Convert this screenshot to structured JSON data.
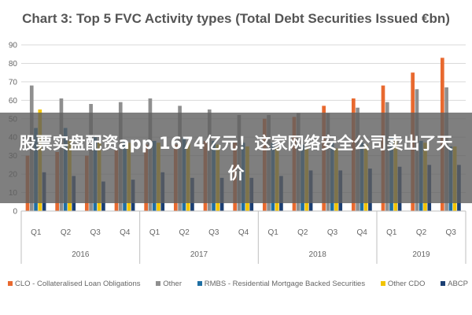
{
  "chart_data": {
    "type": "bar",
    "title": "Chart 3: Top 5 FVC Activity types (Total Debt Securities Issued €bn)",
    "ylim": [
      0,
      90
    ],
    "yticks": [
      "0",
      "10",
      "20",
      "30",
      "40",
      "50",
      "60",
      "70",
      "80",
      "90"
    ],
    "grid": true,
    "legend_position": "bottom",
    "categories": [
      "Q1",
      "Q2",
      "Q3",
      "Q4",
      "Q1",
      "Q2",
      "Q3",
      "Q4",
      "Q1",
      "Q2",
      "Q3",
      "Q4",
      "Q1",
      "Q2",
      "Q3"
    ],
    "years": [
      {
        "label": "2016",
        "count": 4
      },
      {
        "label": "2017",
        "count": 4
      },
      {
        "label": "2018",
        "count": 4
      },
      {
        "label": "2019",
        "count": 3
      }
    ],
    "series": [
      {
        "name": "CLO - Collateralised Loan Obligations",
        "color": "#e8692f",
        "values": [
          30,
          32,
          30,
          33,
          36,
          36,
          38,
          37,
          50,
          51,
          57,
          61,
          68,
          75,
          83
        ]
      },
      {
        "name": "Other",
        "color": "#8f8f8f",
        "values": [
          68,
          61,
          58,
          59,
          61,
          57,
          55,
          52,
          52,
          53,
          53,
          56,
          59,
          66,
          67
        ]
      },
      {
        "name": "RMBS - Residential Mortgage Backed Securities",
        "color": "#1f6fa3",
        "values": [
          45,
          45,
          40,
          38,
          38,
          40,
          38,
          37,
          37,
          36,
          38,
          37,
          40,
          38,
          35
        ]
      },
      {
        "name": "Other CDO",
        "color": "#f2c400",
        "values": [
          55,
          38,
          37,
          37,
          37,
          37,
          36,
          35,
          34,
          34,
          34,
          36,
          38,
          37,
          35
        ]
      },
      {
        "name": "ABCP",
        "color": "#1b3f73",
        "values": [
          21,
          19,
          16,
          17,
          21,
          18,
          18,
          18,
          19,
          22,
          22,
          23,
          24,
          25,
          25
        ]
      }
    ]
  },
  "overlay": {
    "text": "股票实盘配资app 1674亿元！这家网络安全公司卖出了天价"
  }
}
